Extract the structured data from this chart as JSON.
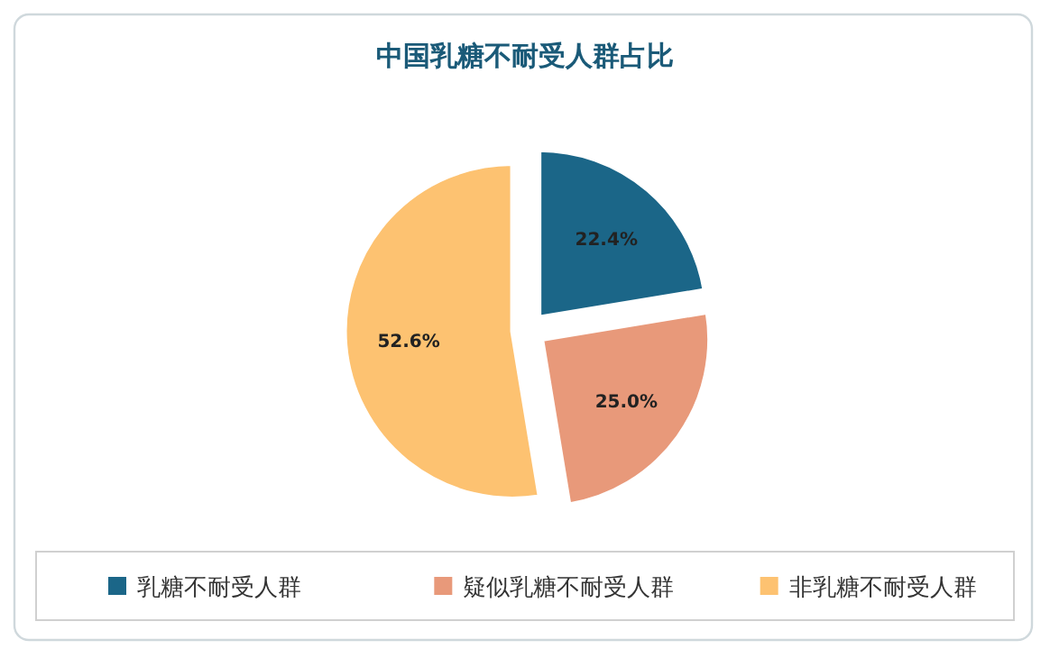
{
  "chart_data": {
    "type": "pie",
    "title": "中国乳糖不耐受人群占比",
    "categories": [
      "乳糖不耐受人群",
      "疑似乳糖不耐受人群",
      "非乳糖不耐受人群"
    ],
    "values": [
      22.4,
      25.0,
      52.6
    ],
    "colors": [
      "#1b6688",
      "#e8997a",
      "#fdc271"
    ],
    "value_labels": [
      "22.4%",
      "25.0%",
      "52.6%"
    ],
    "legend": "bottom"
  }
}
